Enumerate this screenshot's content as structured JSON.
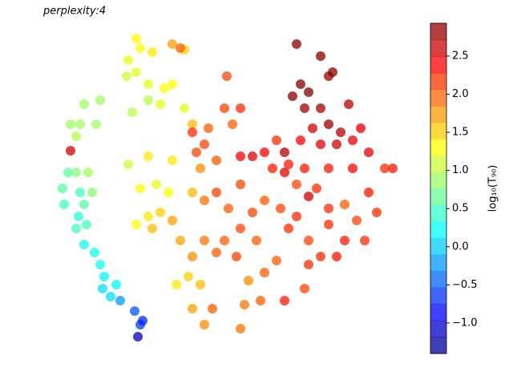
{
  "chart_data": {
    "type": "scatter",
    "title": "perplexity:4",
    "x": [
      88,
      100,
      88,
      105,
      125,
      120,
      95,
      85,
      78,
      80,
      95,
      100,
      110,
      115,
      105,
      98,
      95,
      108,
      105,
      118,
      125,
      130,
      128,
      138,
      145,
      150,
      168,
      175,
      178,
      172,
      170,
      160,
      175,
      190,
      215,
      230,
      158,
      170,
      185,
      205,
      185,
      165,
      200,
      215,
      230,
      240,
      160,
      185,
      215,
      175,
      195,
      210,
      170,
      185,
      200,
      190,
      215,
      225,
      225,
      240,
      255,
      270,
      235,
      220,
      250,
      240,
      255,
      265,
      280,
      295,
      310,
      305,
      325,
      300,
      330,
      345,
      355,
      380,
      385,
      240,
      255,
      270,
      285,
      300,
      250,
      270,
      245,
      260,
      290,
      283,
      300,
      280,
      240,
      315,
      330,
      350,
      360,
      300,
      320,
      255,
      370,
      395,
      410,
      430,
      445,
      455,
      430,
      410,
      385,
      400,
      420,
      370,
      340,
      355,
      380,
      410,
      440,
      460,
      470,
      480,
      385,
      315,
      300,
      330,
      355,
      375,
      400,
      420,
      440,
      460,
      425,
      410,
      390,
      435,
      400,
      380,
      365,
      375,
      385,
      370,
      400,
      410,
      415,
      360,
      345,
      450,
      490
    ],
    "y": [
      292,
      325,
      325,
      350,
      355,
      325,
      310,
      265,
      245,
      225,
      265,
      240,
      265,
      240,
      225,
      210,
      195,
      200,
      175,
      165,
      150,
      135,
      120,
      110,
      125,
      105,
      92,
      75,
      80,
      60,
      432,
      405,
      420,
      415,
      425,
      418,
      385,
      390,
      375,
      370,
      355,
      340,
      350,
      375,
      345,
      325,
      275,
      285,
      280,
      245,
      250,
      240,
      200,
      210,
      215,
      195,
      205,
      420,
      180,
      160,
      180,
      165,
      135,
      125,
      125,
      95,
      75,
      95,
      180,
      160,
      130,
      100,
      105,
      70,
      140,
      155,
      105,
      120,
      150,
      240,
      230,
      240,
      220,
      250,
      270,
      280,
      290,
      320,
      325,
      385,
      345,
      345,
      315,
      215,
      230,
      220,
      195,
      195,
      180,
      300,
      250,
      245,
      220,
      225,
      205,
      180,
      180,
      200,
      180,
      160,
      160,
      210,
      270,
      265,
      270,
      270,
      270,
      240,
      215,
      270,
      235,
      285,
      285,
      290,
      290,
      305,
      300,
      300,
      305,
      290,
      315,
      325,
      320,
      350,
      345,
      345,
      360,
      375,
      365,
      425,
      410,
      385,
      390,
      275,
      305,
      320,
      270
    ],
    "c": [
      2.6,
      0.9,
      0.9,
      0.9,
      0.9,
      0.9,
      1.0,
      0.6,
      0.6,
      0.5,
      0.8,
      0.5,
      0.9,
      0.8,
      0.6,
      0.4,
      0.5,
      0.5,
      0.3,
      0.3,
      0.3,
      0.2,
      0.1,
      0.1,
      0.2,
      -0.2,
      -0.5,
      -0.6,
      -0.7,
      -1.1,
      1.3,
      1.2,
      1.3,
      1.4,
      1.7,
      1.5,
      1.1,
      1.2,
      1.2,
      1.3,
      1.0,
      1.0,
      1.2,
      1.3,
      1.2,
      1.6,
      1.1,
      1.4,
      1.4,
      1.3,
      1.2,
      1.3,
      1.3,
      1.4,
      1.5,
      1.6,
      1.7,
      2.0,
      1.7,
      1.8,
      1.9,
      2.0,
      1.5,
      1.4,
      1.6,
      1.7,
      1.8,
      2.0,
      2.0,
      2.1,
      1.8,
      1.9,
      2.0,
      1.9,
      2.0,
      2.0,
      2.3,
      2.1,
      2.2,
      1.6,
      1.9,
      2.1,
      2.0,
      2.1,
      1.8,
      2.0,
      2.1,
      2.0,
      2.0,
      2.1,
      2.2,
      2.1,
      2.2,
      2.1,
      2.0,
      2.1,
      2.2,
      2.1,
      2.0,
      2.1,
      2.1,
      2.2,
      2.2,
      2.0,
      2.1,
      2.2,
      2.3,
      2.2,
      2.1,
      2.2,
      2.3,
      2.2,
      2.3,
      2.5,
      2.3,
      2.3,
      2.4,
      2.3,
      2.2,
      2.2,
      2.6,
      2.5,
      2.4,
      2.4,
      2.7,
      2.4,
      2.5,
      2.6,
      2.5,
      2.5,
      2.7,
      2.8,
      2.6,
      2.7,
      2.8,
      2.8,
      2.9,
      2.9,
      2.9,
      2.9,
      2.9,
      2.8,
      2.9,
      2.3,
      2.2,
      2.5,
      2.3
    ],
    "xlim": [
      40,
      510
    ],
    "ylim": [
      20,
      460
    ],
    "axes_visible": false,
    "colormap": "jet",
    "alpha": 0.75,
    "clim": [
      -1.4,
      2.93
    ],
    "colorbar_label": "log₁₀(T₉₀)",
    "colorbar_ticks": [
      {
        "value": -1,
        "label": "−1.0"
      },
      {
        "value": -0.5,
        "label": "−0.5"
      },
      {
        "value": 0,
        "label": "0.0"
      },
      0.5,
      {
        "value": 1,
        "label": "1.0"
      },
      1.5,
      {
        "value": 2,
        "label": "2.0"
      },
      2.5
    ]
  }
}
